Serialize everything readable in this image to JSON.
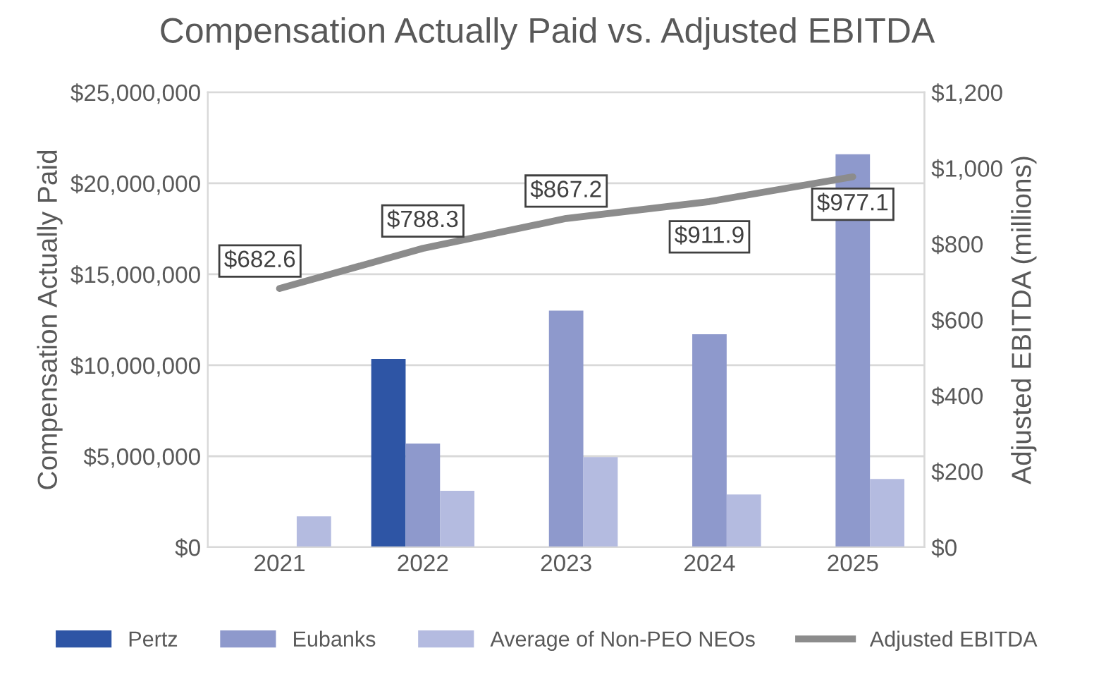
{
  "chart_data": {
    "type": "bar",
    "title": "Compensation Actually Paid vs. Adjusted EBITDA",
    "ylabel": "Compensation Actually Paid",
    "y2label": "Adjusted EBITDA (millions)",
    "categories": [
      "2021",
      "2022",
      "2023",
      "2024",
      "2025"
    ],
    "series": [
      {
        "name": "Pertz",
        "color": "#2e55a5",
        "values": [
          null,
          10350000,
          null,
          null,
          null
        ]
      },
      {
        "name": "Eubanks",
        "color": "#8e99cc",
        "values": [
          null,
          5700000,
          13000000,
          11700000,
          21600000
        ]
      },
      {
        "name": "Average of Non-PEO NEOs",
        "color": "#b4bbe0",
        "values": [
          1700000,
          3100000,
          4950000,
          2900000,
          3750000
        ]
      },
      {
        "name": "Adjusted EBITDA",
        "type": "line",
        "axis": "y2",
        "color": "#8c8c8c",
        "values": [
          682.6,
          788.3,
          867.2,
          911.9,
          977.1
        ],
        "value_labels": [
          "$682.6",
          "$788.3",
          "$867.2",
          "$911.9",
          "$977.1"
        ]
      }
    ],
    "ylim": [
      0,
      25000000
    ],
    "yticks": [
      {
        "value": 0,
        "label": "$0"
      },
      {
        "value": 5000000,
        "label": "$5,000,000"
      },
      {
        "value": 10000000,
        "label": "$10,000,000"
      },
      {
        "value": 15000000,
        "label": "$15,000,000"
      },
      {
        "value": 20000000,
        "label": "$20,000,000"
      },
      {
        "value": 25000000,
        "label": "$25,000,000"
      }
    ],
    "y2lim": [
      0,
      1200
    ],
    "y2ticks": [
      {
        "value": 0,
        "label": "$0"
      },
      {
        "value": 200,
        "label": "$200"
      },
      {
        "value": 400,
        "label": "$400"
      },
      {
        "value": 600,
        "label": "$600"
      },
      {
        "value": 800,
        "label": "$800"
      },
      {
        "value": 1000,
        "label": "$1,000"
      },
      {
        "value": 1200,
        "label": "$1,200"
      }
    ],
    "grid": "y",
    "legend": "bottom"
  }
}
